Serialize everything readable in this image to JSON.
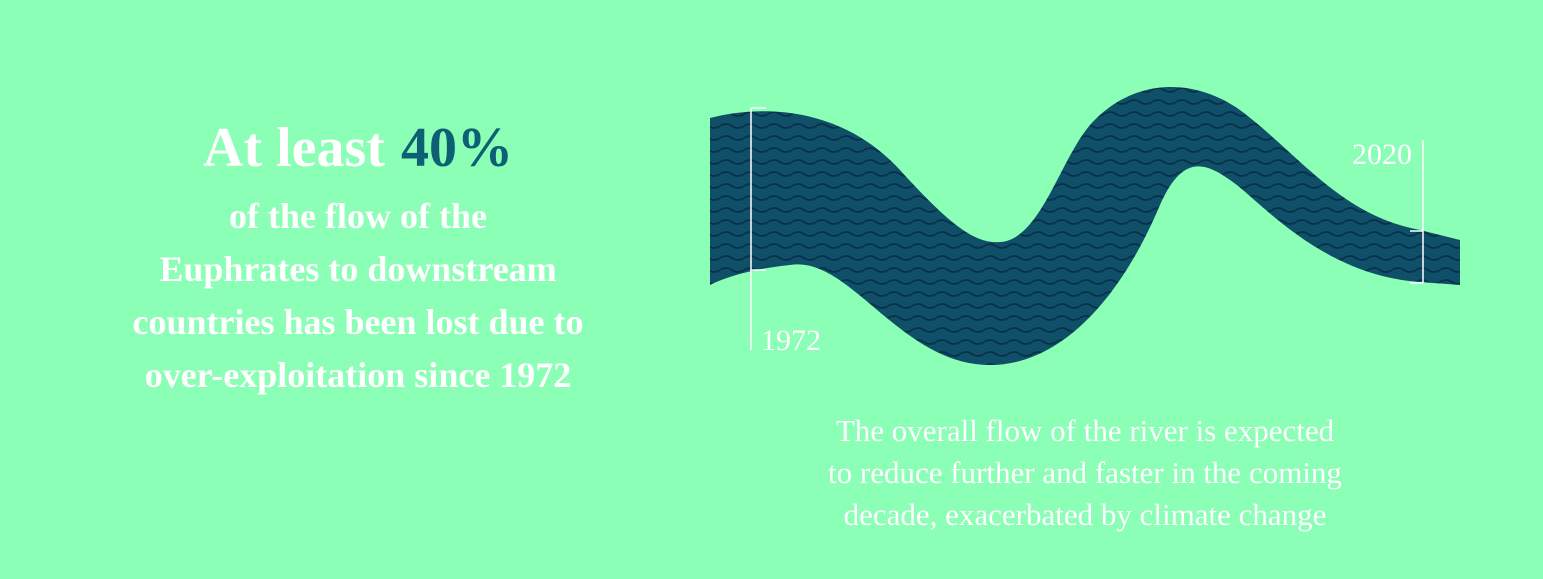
{
  "headline": {
    "lead": "At least",
    "highlight": "40%",
    "lines": [
      "of the flow of the",
      "Euphrates to downstream",
      "countries has been lost due to",
      "over-exploitation since 1972"
    ]
  },
  "river": {
    "start_label": "1972",
    "end_label": "2020"
  },
  "caption": {
    "lines": [
      "The overall flow of the river is expected",
      "to reduce further and faster in the coming",
      "decade, exacerbated by climate change"
    ]
  }
}
